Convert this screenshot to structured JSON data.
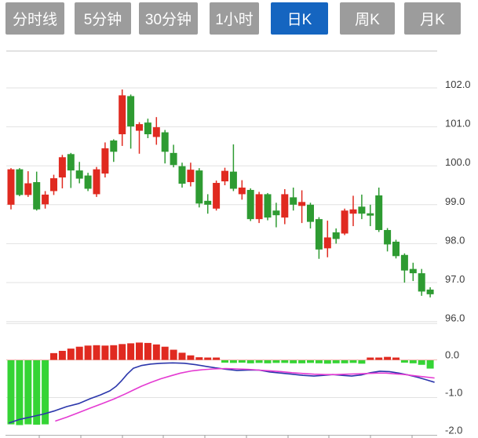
{
  "toolbar": {
    "tabs": [
      {
        "label": "分时线",
        "active": false
      },
      {
        "label": "5分钟",
        "active": false
      },
      {
        "label": "30分钟",
        "active": false
      },
      {
        "label": "1小时",
        "active": false
      },
      {
        "label": "日K",
        "active": true
      },
      {
        "label": "周K",
        "active": false
      },
      {
        "label": "月K",
        "active": false
      }
    ]
  },
  "colors": {
    "tab_inactive_bg": "#9C9C9C",
    "tab_active_bg": "#1565C0",
    "tab_text": "#FFFFFF",
    "bull_red": "#E02A20",
    "bear_green": "#2E9B32",
    "macd_bar_green": "#35D435",
    "dif_line_blue": "#2B36AB",
    "dea_line_magenta": "#E43BD2",
    "grid": "#E2E2E2",
    "border": "#C6C6C6",
    "zero_line": "#EFB6AE",
    "axis_text": "#3C3C3C",
    "tick": "#999999"
  },
  "chart_data": {
    "type": "candlestick",
    "title": "日K candlestick chart with MACD indicator",
    "legend_position": "none",
    "grid": true,
    "price_axis": {
      "side": "right",
      "tick_labels": [
        "102.0",
        "101.0",
        "100.0",
        "99.0",
        "98.0",
        "97.0",
        "96.0"
      ],
      "tick_values": [
        102.0,
        101.0,
        100.0,
        99.0,
        98.0,
        97.0,
        96.0
      ],
      "range": [
        95.9,
        102.95
      ]
    },
    "indicator_axis": {
      "side": "right",
      "tick_labels": [
        "0.0",
        "-1.0",
        "-2.0"
      ],
      "tick_values": [
        0.0,
        -1.0,
        -2.0
      ],
      "range": [
        -2.05,
        0.95
      ]
    },
    "candles_ohlc": [
      [
        99.0,
        99.94,
        98.88,
        99.91
      ],
      [
        99.91,
        99.94,
        99.22,
        99.25
      ],
      [
        99.25,
        99.86,
        99.2,
        99.55
      ],
      [
        99.58,
        99.85,
        98.85,
        98.88
      ],
      [
        99.01,
        99.35,
        98.9,
        99.26
      ],
      [
        99.35,
        99.77,
        99.25,
        99.68
      ],
      [
        99.7,
        100.28,
        99.42,
        100.22
      ],
      [
        100.3,
        100.33,
        99.43,
        99.88
      ],
      [
        99.88,
        100.1,
        99.55,
        99.67
      ],
      [
        99.75,
        99.82,
        99.35,
        99.41
      ],
      [
        99.27,
        99.97,
        99.2,
        99.91
      ],
      [
        99.8,
        100.6,
        99.7,
        100.45
      ],
      [
        100.65,
        100.68,
        100.1,
        100.36
      ],
      [
        100.81,
        101.96,
        100.51,
        101.81
      ],
      [
        101.79,
        101.83,
        100.44,
        101.01
      ],
      [
        100.9,
        101.12,
        100.31,
        101.07
      ],
      [
        101.11,
        101.21,
        100.71,
        100.81
      ],
      [
        100.74,
        101.25,
        100.54,
        100.99
      ],
      [
        100.86,
        100.92,
        100.06,
        100.36
      ],
      [
        100.33,
        100.54,
        99.96,
        100.02
      ],
      [
        99.99,
        100.08,
        99.44,
        99.54
      ],
      [
        99.58,
        100.08,
        99.47,
        99.9
      ],
      [
        99.88,
        99.94,
        98.93,
        99.03
      ],
      [
        99.1,
        99.27,
        98.77,
        99.0
      ],
      [
        98.9,
        99.62,
        98.85,
        99.56
      ],
      [
        99.6,
        99.95,
        99.5,
        99.87
      ],
      [
        99.85,
        100.55,
        99.35,
        99.41
      ],
      [
        99.27,
        99.63,
        99.13,
        99.44
      ],
      [
        99.38,
        99.42,
        98.58,
        98.63
      ],
      [
        98.63,
        99.33,
        98.53,
        99.27
      ],
      [
        99.27,
        99.3,
        98.6,
        98.67
      ],
      [
        98.85,
        99.05,
        98.42,
        98.73
      ],
      [
        98.67,
        99.4,
        98.5,
        99.27
      ],
      [
        99.19,
        99.44,
        98.85,
        99.0
      ],
      [
        98.97,
        99.37,
        98.53,
        99.07
      ],
      [
        99.0,
        99.05,
        98.39,
        98.56
      ],
      [
        98.63,
        98.68,
        97.61,
        97.85
      ],
      [
        97.88,
        98.59,
        97.65,
        98.16
      ],
      [
        98.29,
        98.39,
        98.0,
        98.12
      ],
      [
        98.26,
        98.9,
        98.22,
        98.85
      ],
      [
        98.77,
        99.23,
        98.45,
        98.88
      ],
      [
        98.95,
        99.26,
        98.63,
        98.77
      ],
      [
        98.78,
        99.0,
        98.45,
        98.72
      ],
      [
        99.24,
        99.44,
        98.3,
        98.35
      ],
      [
        98.35,
        98.4,
        97.8,
        97.98
      ],
      [
        98.05,
        98.1,
        97.62,
        97.68
      ],
      [
        97.71,
        97.75,
        97.0,
        97.31
      ],
      [
        97.35,
        97.51,
        97.04,
        97.24
      ],
      [
        97.24,
        97.35,
        96.66,
        96.77
      ],
      [
        96.82,
        96.88,
        96.62,
        96.7
      ]
    ],
    "macd_histogram": [
      -1.7,
      -1.72,
      -1.7,
      -1.71,
      -1.7,
      0.18,
      0.24,
      0.3,
      0.35,
      0.38,
      0.39,
      0.38,
      0.39,
      0.42,
      0.44,
      0.46,
      0.45,
      0.41,
      0.35,
      0.27,
      0.19,
      0.12,
      0.07,
      0.05,
      0.03,
      -0.06,
      -0.07,
      -0.06,
      -0.08,
      -0.07,
      -0.08,
      -0.07,
      -0.07,
      -0.08,
      -0.08,
      -0.07,
      -0.08,
      -0.09,
      -0.08,
      -0.08,
      -0.07,
      -0.09,
      0.03,
      0.06,
      0.08,
      0.04,
      -0.06,
      -0.08,
      -0.12,
      -0.22
    ],
    "dif_line": [
      [
        12,
        -1.67
      ],
      [
        25,
        -1.58
      ],
      [
        40,
        -1.51
      ],
      [
        55,
        -1.44
      ],
      [
        70,
        -1.35
      ],
      [
        85,
        -1.24
      ],
      [
        100,
        -1.16
      ],
      [
        115,
        -1.03
      ],
      [
        128,
        -0.93
      ],
      [
        140,
        -0.82
      ],
      [
        148,
        -0.7
      ],
      [
        155,
        -0.55
      ],
      [
        162,
        -0.38
      ],
      [
        170,
        -0.22
      ],
      [
        180,
        -0.15
      ],
      [
        192,
        -0.11
      ],
      [
        205,
        -0.09
      ],
      [
        220,
        -0.08
      ],
      [
        235,
        -0.09
      ],
      [
        250,
        -0.13
      ],
      [
        262,
        -0.17
      ],
      [
        274,
        -0.21
      ],
      [
        288,
        -0.25
      ],
      [
        302,
        -0.28
      ],
      [
        316,
        -0.27
      ],
      [
        330,
        -0.27
      ],
      [
        344,
        -0.32
      ],
      [
        358,
        -0.35
      ],
      [
        372,
        -0.38
      ],
      [
        386,
        -0.41
      ],
      [
        400,
        -0.43
      ],
      [
        412,
        -0.41
      ],
      [
        424,
        -0.39
      ],
      [
        436,
        -0.41
      ],
      [
        448,
        -0.43
      ],
      [
        460,
        -0.4
      ],
      [
        472,
        -0.34
      ],
      [
        484,
        -0.3
      ],
      [
        496,
        -0.31
      ],
      [
        508,
        -0.35
      ],
      [
        520,
        -0.4
      ],
      [
        532,
        -0.46
      ],
      [
        542,
        -0.52
      ],
      [
        553,
        -0.59
      ]
    ],
    "dea_line": [
      [
        71,
        -1.62
      ],
      [
        85,
        -1.52
      ],
      [
        100,
        -1.4
      ],
      [
        115,
        -1.28
      ],
      [
        130,
        -1.16
      ],
      [
        145,
        -1.04
      ],
      [
        160,
        -0.9
      ],
      [
        170,
        -0.8
      ],
      [
        180,
        -0.7
      ],
      [
        192,
        -0.6
      ],
      [
        205,
        -0.5
      ],
      [
        218,
        -0.42
      ],
      [
        230,
        -0.35
      ],
      [
        245,
        -0.29
      ],
      [
        258,
        -0.26
      ],
      [
        272,
        -0.24
      ],
      [
        288,
        -0.23
      ],
      [
        302,
        -0.24
      ],
      [
        316,
        -0.25
      ],
      [
        330,
        -0.27
      ],
      [
        344,
        -0.29
      ],
      [
        358,
        -0.31
      ],
      [
        372,
        -0.34
      ],
      [
        386,
        -0.36
      ],
      [
        400,
        -0.38
      ],
      [
        414,
        -0.39
      ],
      [
        428,
        -0.39
      ],
      [
        442,
        -0.38
      ],
      [
        456,
        -0.37
      ],
      [
        468,
        -0.36
      ],
      [
        480,
        -0.35
      ],
      [
        492,
        -0.35
      ],
      [
        504,
        -0.37
      ],
      [
        516,
        -0.39
      ],
      [
        528,
        -0.42
      ],
      [
        540,
        -0.45
      ],
      [
        553,
        -0.48
      ]
    ]
  }
}
